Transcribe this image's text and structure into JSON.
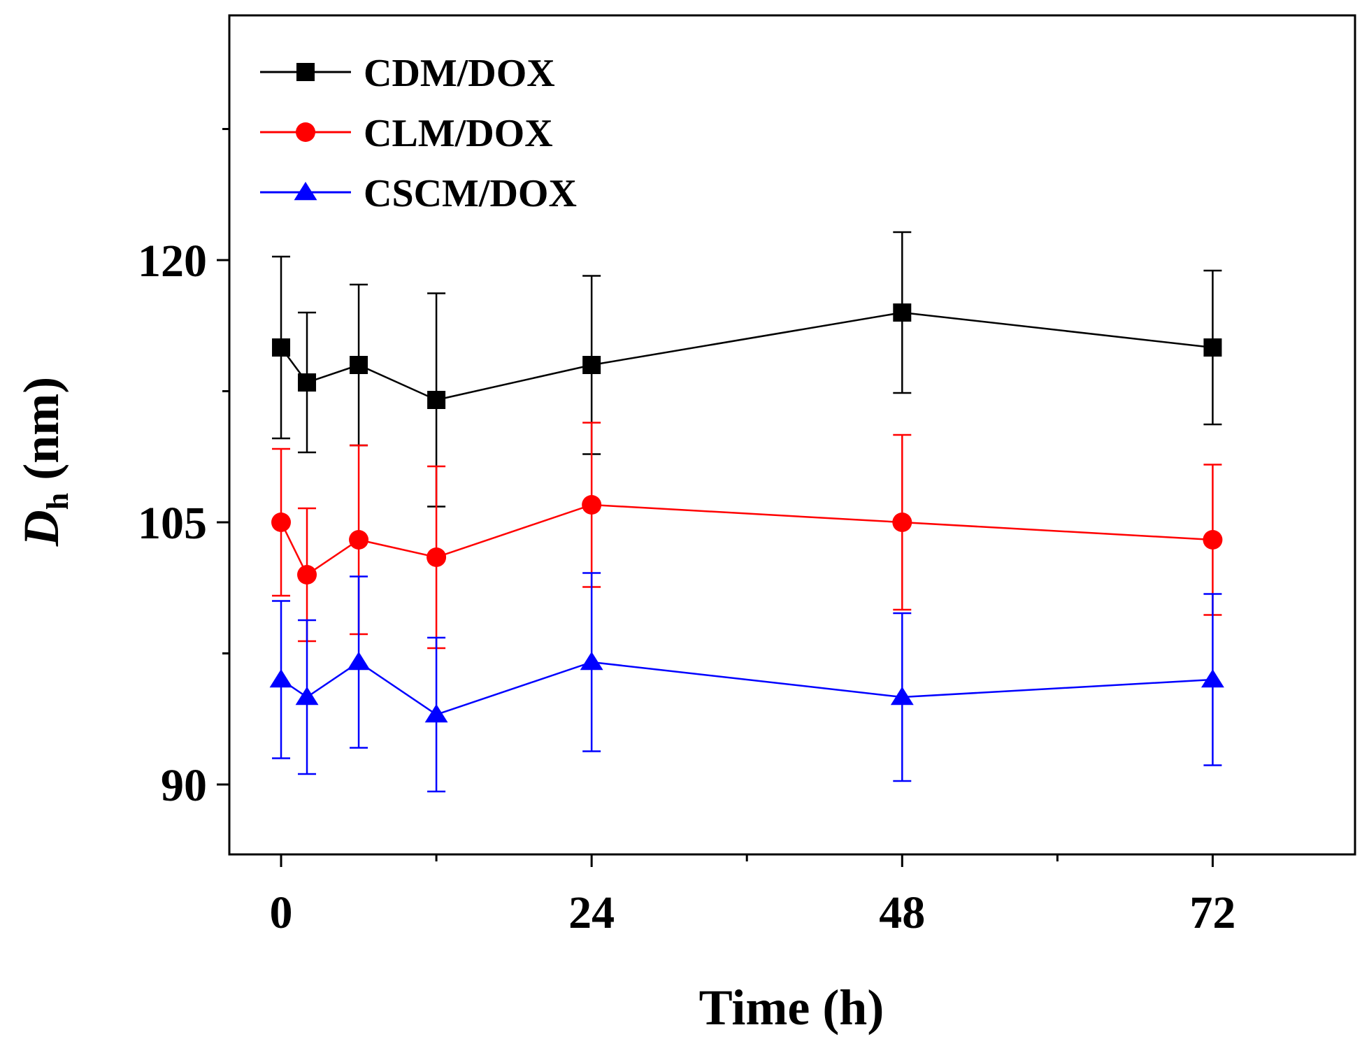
{
  "chart_data": {
    "type": "line",
    "xlabel": "Time (h)",
    "ylabel": {
      "symbol": "D",
      "subscript": "h",
      "unit": "(nm)"
    },
    "xlim": [
      -4,
      83
    ],
    "ylim": [
      86,
      134
    ],
    "x_ticks": [
      0,
      24,
      48,
      72
    ],
    "x_tick_labels": [
      "0",
      "24",
      "48",
      "72"
    ],
    "x_minor_ticks": [
      12,
      36,
      60
    ],
    "y_ticks": [
      90,
      105,
      120
    ],
    "y_tick_labels": [
      "90",
      "105",
      "120"
    ],
    "y_minor_ticks": [
      97.5,
      112.5,
      127.5
    ],
    "legend_position": "top-left",
    "x": [
      0,
      2,
      6,
      12,
      24,
      48,
      72
    ],
    "series": [
      {
        "name": "CDM/DOX",
        "color": "#000000",
        "marker": "square",
        "values": [
          115,
          113,
          114,
          112,
          114,
          117,
          115
        ],
        "errors": [
          5.2,
          4,
          4.6,
          6.1,
          5.1,
          4.6,
          4.4
        ]
      },
      {
        "name": "CLM/DOX",
        "color": "#ff0000",
        "marker": "circle",
        "values": [
          105,
          102,
          104,
          103,
          106,
          105,
          104
        ],
        "errors": [
          4.2,
          3.8,
          5.4,
          5.2,
          4.7,
          5.0,
          4.3
        ]
      },
      {
        "name": "CSCM/DOX",
        "color": "#0000ff",
        "marker": "triangle",
        "values": [
          96,
          95,
          97,
          94,
          97,
          95,
          96
        ],
        "errors": [
          4.5,
          4.4,
          4.9,
          4.4,
          5.1,
          4.8,
          4.9
        ]
      }
    ]
  }
}
